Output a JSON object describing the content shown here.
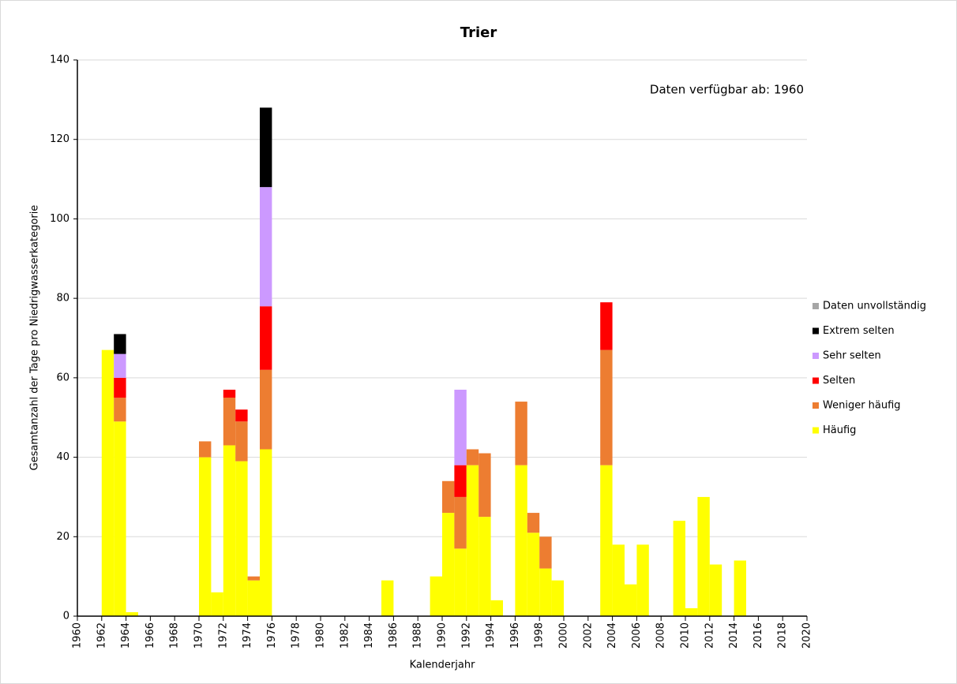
{
  "chart_data": {
    "type": "stacked_bar",
    "title": "Trier",
    "annotation": "Daten verfügbar ab: 1960",
    "x_label": "Kalenderjahr",
    "y_label": "Gesamtanzahl der Tage pro Niedrigwasserkategorie",
    "x": [
      1962,
      1963,
      1964,
      1970,
      1971,
      1972,
      1973,
      1974,
      1975,
      1985,
      1989,
      1990,
      1991,
      1992,
      1993,
      1994,
      1996,
      1997,
      1998,
      1999,
      2003,
      2004,
      2005,
      2006,
      2009,
      2010,
      2011,
      2012,
      2014
    ],
    "series": [
      {
        "name": "Häufig",
        "color": "#ffff00",
        "values": [
          67,
          49,
          1,
          40,
          6,
          43,
          39,
          9,
          42,
          9,
          10,
          26,
          17,
          38,
          25,
          4,
          38,
          21,
          12,
          9,
          38,
          18,
          8,
          18,
          24,
          2,
          30,
          13,
          14
        ]
      },
      {
        "name": "Weniger häufig",
        "color": "#ed7d31",
        "values": [
          0,
          6,
          0,
          4,
          0,
          12,
          10,
          1,
          20,
          0,
          0,
          8,
          13,
          4,
          16,
          0,
          16,
          5,
          8,
          0,
          29,
          0,
          0,
          0,
          0,
          0,
          0,
          0,
          0
        ]
      },
      {
        "name": "Selten",
        "color": "#ff0000",
        "values": [
          0,
          5,
          0,
          0,
          0,
          2,
          3,
          0,
          16,
          0,
          0,
          0,
          8,
          0,
          0,
          0,
          0,
          0,
          0,
          0,
          12,
          0,
          0,
          0,
          0,
          0,
          0,
          0,
          0
        ]
      },
      {
        "name": "Sehr selten",
        "color": "#cc99ff",
        "values": [
          0,
          6,
          0,
          0,
          0,
          0,
          0,
          0,
          30,
          0,
          0,
          0,
          19,
          0,
          0,
          0,
          0,
          0,
          0,
          0,
          0,
          0,
          0,
          0,
          0,
          0,
          0,
          0,
          0
        ]
      },
      {
        "name": "Extrem selten",
        "color": "#000000",
        "values": [
          0,
          5,
          0,
          0,
          0,
          0,
          0,
          0,
          20,
          0,
          0,
          0,
          0,
          0,
          0,
          0,
          0,
          0,
          0,
          0,
          0,
          0,
          0,
          0,
          0,
          0,
          0,
          0,
          0
        ]
      },
      {
        "name": "Daten unvollständig",
        "color": "#a6a6a6",
        "values": [
          0,
          0,
          0,
          0,
          0,
          0,
          0,
          0,
          0,
          0,
          0,
          0,
          0,
          0,
          0,
          0,
          0,
          0,
          0,
          0,
          0,
          0,
          0,
          0,
          0,
          0,
          0,
          0,
          0
        ]
      }
    ],
    "xlim": [
      1960,
      2020
    ],
    "xticks": [
      1960,
      1962,
      1964,
      1966,
      1968,
      1970,
      1972,
      1974,
      1976,
      1978,
      1980,
      1982,
      1984,
      1986,
      1988,
      1990,
      1992,
      1994,
      1996,
      1998,
      2000,
      2002,
      2004,
      2006,
      2008,
      2010,
      2012,
      2014,
      2016,
      2018,
      2020
    ],
    "ylim": [
      0,
      140
    ],
    "yticks": [
      0,
      20,
      40,
      60,
      80,
      100,
      120,
      140
    ],
    "grid": true,
    "legend": "right"
  }
}
